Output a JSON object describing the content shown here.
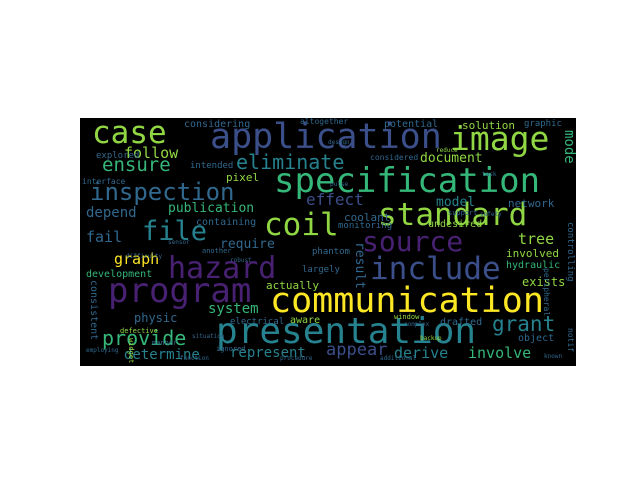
{
  "wordcloud": {
    "palette": {
      "background": "#000000",
      "purple": "#482173",
      "indigo": "#3b4f8a",
      "blue": "#31688e",
      "teal": "#26828e",
      "green": "#35b779",
      "lime": "#90d743",
      "yellow": "#fde725"
    },
    "words": {
      "communication": "communication",
      "presentation": "presentation",
      "specification": "specification",
      "application": "application",
      "program": "program",
      "standard": "standard",
      "include": "include",
      "hazard": "hazard",
      "image": "image",
      "case": "case",
      "coil": "coil",
      "source": "source",
      "file": "file",
      "inspection": "inspection",
      "eliminate": "eliminate",
      "grant": "grant",
      "provide": "provide",
      "determine": "determine",
      "represent": "represent",
      "appear": "appear",
      "involve": "involve",
      "derive": "derive",
      "ensure": "ensure",
      "follow": "follow",
      "document": "document",
      "publication": "publication",
      "effect": "effect",
      "model": "model",
      "depend": "depend",
      "require": "require",
      "fail": "fail",
      "graph": "graph",
      "tree": "tree",
      "physic": "physic",
      "system": "system",
      "exists": "exists",
      "involved": "involved",
      "hydraulic": "hydraulic",
      "mode": "mode",
      "network": "network",
      "actually": "actually",
      "development": "development",
      "consistent": "consistent",
      "result": "result",
      "undesired": "undesired",
      "considering": "considering",
      "altogether": "altogether",
      "potential": "potential",
      "solution": "solution",
      "graphic": "graphic",
      "explored": "explored",
      "intended": "intended",
      "considered": "considered",
      "pixel": "pixel",
      "containing": "containing",
      "coolant": "coolant",
      "monitoring": "monitoring",
      "phantom": "phantom",
      "aware": "aware",
      "largely": "largely",
      "electrical": "electrical",
      "defective": "defective",
      "ignored": "ignored",
      "drafted": "drafted",
      "object": "object",
      "interface": "interface",
      "window": "window",
      "peripheral": "peripheral",
      "controlling": "controlling",
      "complex": "complex",
      "situation": "situation",
      "widget": "widget",
      "another": "another",
      "manner": "manner",
      "employing": "employing",
      "backup": "backup",
      "support": "support",
      "difficulty": "difficulty",
      "additional": "additional",
      "function": "function",
      "procedure": "procedure",
      "reduce": "reduce",
      "design": "design",
      "sensor": "sensor",
      "robust": "robust",
      "pulse": "pulse",
      "safety": "safety",
      "task": "task",
      "known": "known",
      "notif": "notif"
    }
  }
}
